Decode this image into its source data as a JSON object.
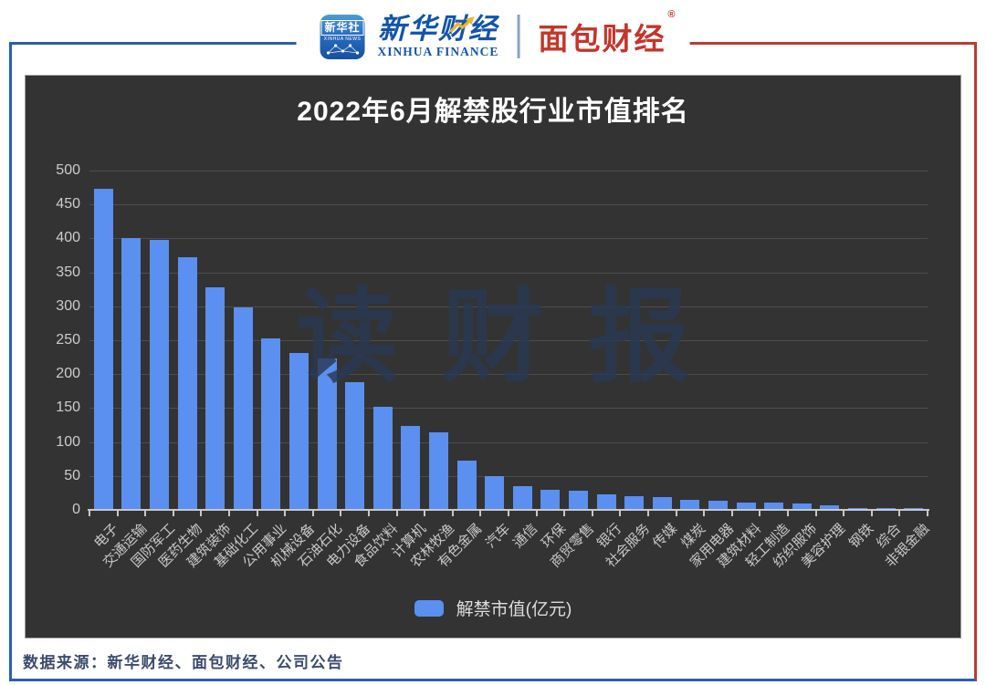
{
  "header": {
    "xinhua_app": {
      "line1": "新华社",
      "line2": "XINHUA NEWS"
    },
    "xinhua_finance": {
      "cn": "新华财经",
      "en": "XINHUA FINANCE"
    },
    "bread_finance": {
      "cn": "面包财经",
      "reg_mark": "®"
    }
  },
  "chart_data": {
    "type": "bar",
    "title": "2022年6月解禁股行业市值排名",
    "legend_label": "解禁市值(亿元)",
    "legend_position": "bottom",
    "watermark": "读财报",
    "categories": [
      "电子",
      "交通运输",
      "国防军工",
      "医药生物",
      "建筑装饰",
      "基础化工",
      "公用事业",
      "机械设备",
      "石油石化",
      "电力设备",
      "食品饮料",
      "计算机",
      "农林牧渔",
      "有色金属",
      "汽车",
      "通信",
      "环保",
      "商贸零售",
      "银行",
      "社会服务",
      "传媒",
      "煤炭",
      "家用电器",
      "建筑材料",
      "轻工制造",
      "纺织服饰",
      "美容护理",
      "钢铁",
      "综合",
      "非银金融"
    ],
    "values": [
      472,
      399,
      397,
      371,
      326,
      297,
      252,
      230,
      222,
      187,
      150,
      122,
      113,
      71,
      49,
      34,
      28,
      27,
      21,
      19,
      17,
      13,
      12,
      10,
      9,
      8,
      6,
      2,
      1,
      0.6
    ],
    "xlabel": "",
    "ylabel": "",
    "ylim": [
      0,
      500
    ],
    "yticks": [
      0,
      50,
      100,
      150,
      200,
      250,
      300,
      350,
      400,
      450,
      500
    ],
    "grid": true,
    "bar_color": "#5b8ff0",
    "background": "#333333"
  },
  "colors": {
    "frame_blue": "#2b5fae",
    "frame_red": "#bf3a32",
    "brand_blue": "#1254ae",
    "brand_red": "#c5352b",
    "bar": "#5b8ff0",
    "panel_bg": "#333333",
    "watermark": "#2a3852",
    "footer_text": "#3b4c6e"
  },
  "icons": {
    "xinhua_app": "xinhua-news-app-icon",
    "network_globe": "network-globe-icon",
    "stock_arrow": "stock-arrow-icon"
  },
  "footer": {
    "source": "数据来源：新华财经、面包财经、公司公告"
  }
}
